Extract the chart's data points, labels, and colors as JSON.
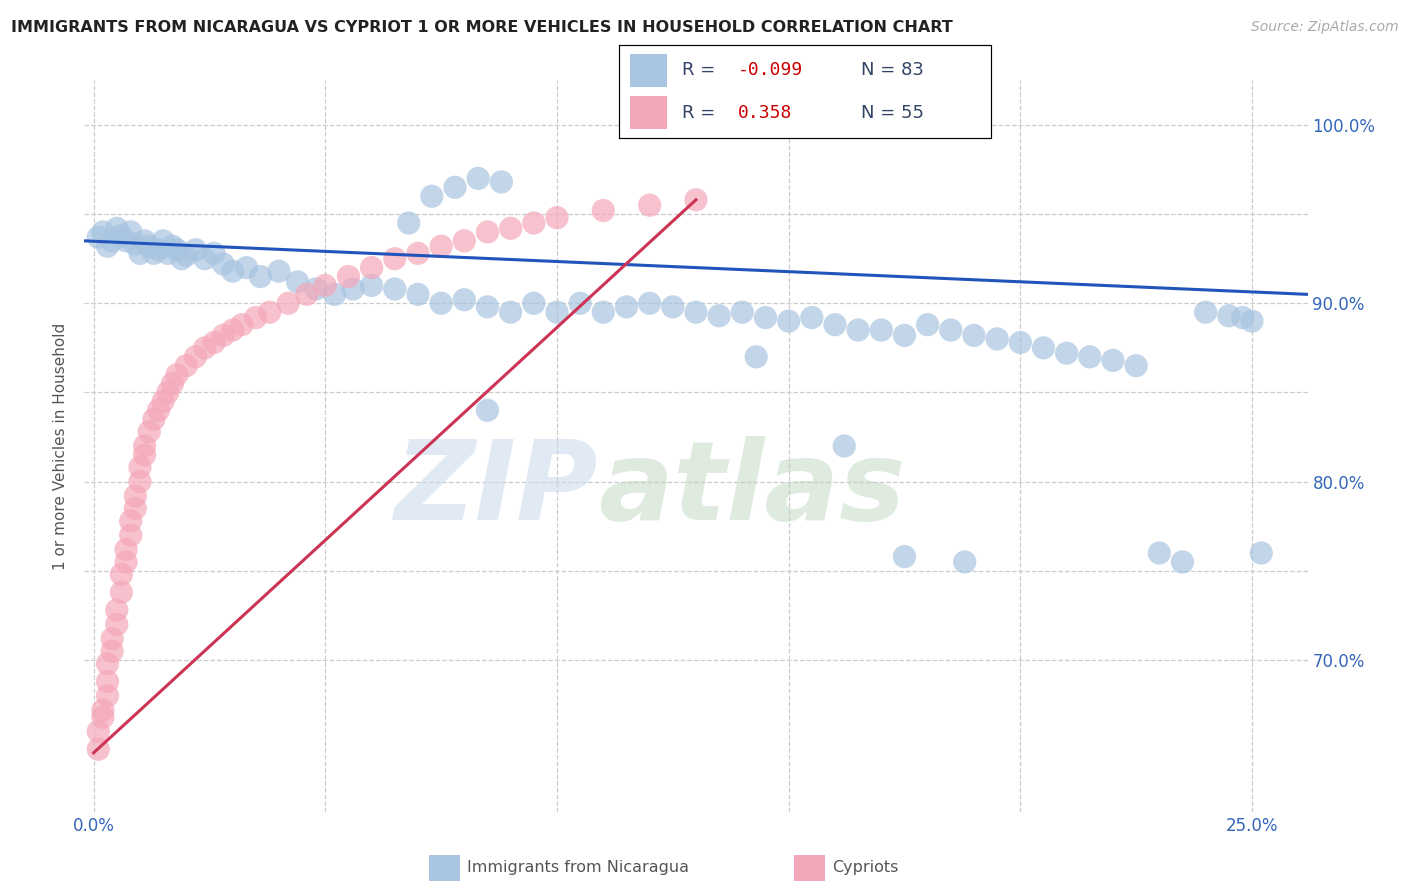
{
  "title": "IMMIGRANTS FROM NICARAGUA VS CYPRIOT 1 OR MORE VEHICLES IN HOUSEHOLD CORRELATION CHART",
  "source": "Source: ZipAtlas.com",
  "ylabel_label": "1 or more Vehicles in Household",
  "xlim": [
    -0.002,
    0.262
  ],
  "ylim": [
    0.615,
    1.025
  ],
  "x_tick_positions": [
    0.0,
    0.05,
    0.1,
    0.15,
    0.2,
    0.25
  ],
  "x_tick_labels": [
    "0.0%",
    "",
    "",
    "",
    "",
    "25.0%"
  ],
  "y_tick_positions": [
    0.7,
    0.75,
    0.8,
    0.85,
    0.9,
    0.95,
    1.0
  ],
  "y_tick_labels": [
    "70.0%",
    "",
    "80.0%",
    "",
    "90.0%",
    "",
    "100.0%"
  ],
  "legend_R1": "-0.099",
  "legend_N1": "83",
  "legend_R2": "0.358",
  "legend_N2": "55",
  "blue_color": "#a8c4e0",
  "pink_color": "#f4a7b9",
  "blue_line_color": "#2255bb",
  "pink_line_color": "#cc3355",
  "blue_x": [
    0.001,
    0.002,
    0.003,
    0.004,
    0.005,
    0.006,
    0.007,
    0.008,
    0.009,
    0.01,
    0.011,
    0.012,
    0.013,
    0.014,
    0.015,
    0.016,
    0.017,
    0.018,
    0.019,
    0.02,
    0.022,
    0.024,
    0.026,
    0.028,
    0.03,
    0.033,
    0.036,
    0.04,
    0.044,
    0.048,
    0.052,
    0.056,
    0.06,
    0.065,
    0.07,
    0.075,
    0.08,
    0.085,
    0.09,
    0.095,
    0.1,
    0.105,
    0.11,
    0.115,
    0.12,
    0.125,
    0.13,
    0.135,
    0.14,
    0.145,
    0.15,
    0.155,
    0.16,
    0.165,
    0.17,
    0.175,
    0.18,
    0.185,
    0.19,
    0.195,
    0.2,
    0.205,
    0.21,
    0.215,
    0.22,
    0.225,
    0.23,
    0.235,
    0.24,
    0.245,
    0.248,
    0.25,
    0.252,
    0.085,
    0.143,
    0.162,
    0.175,
    0.188,
    0.068,
    0.073,
    0.078,
    0.083,
    0.088
  ],
  "blue_y": [
    0.937,
    0.94,
    0.932,
    0.935,
    0.942,
    0.938,
    0.935,
    0.94,
    0.933,
    0.928,
    0.935,
    0.932,
    0.928,
    0.93,
    0.935,
    0.928,
    0.932,
    0.93,
    0.925,
    0.927,
    0.93,
    0.925,
    0.928,
    0.922,
    0.918,
    0.92,
    0.915,
    0.918,
    0.912,
    0.908,
    0.905,
    0.908,
    0.91,
    0.908,
    0.905,
    0.9,
    0.902,
    0.898,
    0.895,
    0.9,
    0.895,
    0.9,
    0.895,
    0.898,
    0.9,
    0.898,
    0.895,
    0.893,
    0.895,
    0.892,
    0.89,
    0.892,
    0.888,
    0.885,
    0.885,
    0.882,
    0.888,
    0.885,
    0.882,
    0.88,
    0.878,
    0.875,
    0.872,
    0.87,
    0.868,
    0.865,
    0.76,
    0.755,
    0.895,
    0.893,
    0.892,
    0.89,
    0.76,
    0.84,
    0.87,
    0.82,
    0.758,
    0.755,
    0.945,
    0.96,
    0.965,
    0.97,
    0.968
  ],
  "pink_x": [
    0.001,
    0.001,
    0.002,
    0.002,
    0.003,
    0.003,
    0.003,
    0.004,
    0.004,
    0.005,
    0.005,
    0.006,
    0.006,
    0.007,
    0.007,
    0.008,
    0.008,
    0.009,
    0.009,
    0.01,
    0.01,
    0.011,
    0.011,
    0.012,
    0.013,
    0.014,
    0.015,
    0.016,
    0.017,
    0.018,
    0.02,
    0.022,
    0.024,
    0.026,
    0.028,
    0.03,
    0.032,
    0.035,
    0.038,
    0.042,
    0.046,
    0.05,
    0.055,
    0.06,
    0.065,
    0.07,
    0.075,
    0.08,
    0.085,
    0.09,
    0.095,
    0.1,
    0.11,
    0.12,
    0.13
  ],
  "pink_y": [
    0.65,
    0.66,
    0.668,
    0.672,
    0.68,
    0.688,
    0.698,
    0.705,
    0.712,
    0.72,
    0.728,
    0.738,
    0.748,
    0.755,
    0.762,
    0.77,
    0.778,
    0.785,
    0.792,
    0.8,
    0.808,
    0.815,
    0.82,
    0.828,
    0.835,
    0.84,
    0.845,
    0.85,
    0.855,
    0.86,
    0.865,
    0.87,
    0.875,
    0.878,
    0.882,
    0.885,
    0.888,
    0.892,
    0.895,
    0.9,
    0.905,
    0.91,
    0.915,
    0.92,
    0.925,
    0.928,
    0.932,
    0.935,
    0.94,
    0.942,
    0.945,
    0.948,
    0.952,
    0.955,
    0.958
  ]
}
